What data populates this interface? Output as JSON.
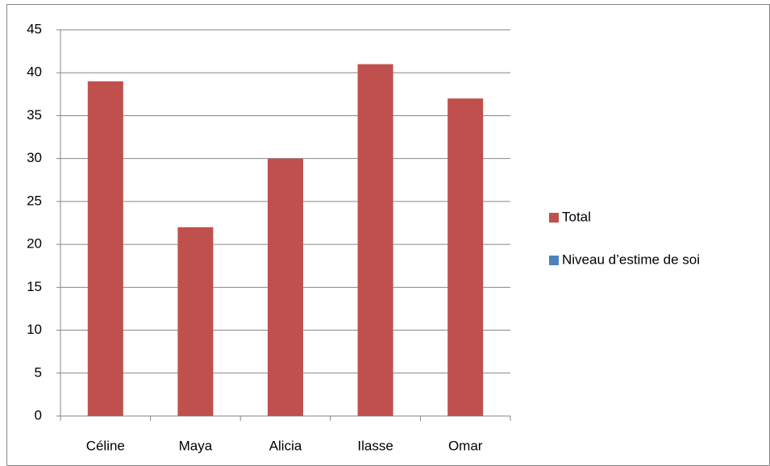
{
  "chart_data": {
    "type": "bar",
    "categories": [
      "Céline",
      "Maya",
      "Alicia",
      "Ilasse",
      "Omar"
    ],
    "series": [
      {
        "name": "Total",
        "color": "#c0504d",
        "values": [
          39,
          22,
          30,
          41,
          37
        ]
      },
      {
        "name": "Niveau d’estime de soi",
        "color": "#4f81bd",
        "values": [
          null,
          null,
          null,
          null,
          null
        ]
      }
    ],
    "ylim": [
      0,
      45
    ],
    "yticks": [
      0,
      5,
      10,
      15,
      20,
      25,
      30,
      35,
      40,
      45
    ],
    "grid": true,
    "legend": "right"
  }
}
